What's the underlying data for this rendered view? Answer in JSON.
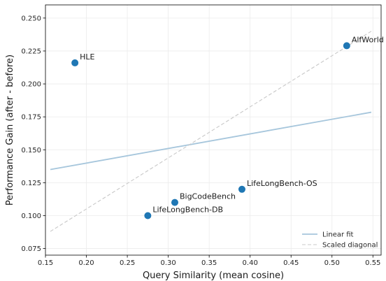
{
  "chart_data": {
    "type": "scatter",
    "title": "",
    "xlabel": "Query Similarity (mean cosine)",
    "ylabel": "Performance Gain (after - before)",
    "xlim": [
      0.15,
      0.56
    ],
    "ylim": [
      0.07,
      0.26
    ],
    "xticks": [
      0.15,
      0.2,
      0.25,
      0.3,
      0.35,
      0.4,
      0.45,
      0.5,
      0.55
    ],
    "xtick_labels": [
      "0.15",
      "0.20",
      "0.25",
      "0.30",
      "0.35",
      "0.40",
      "0.45",
      "0.50",
      "0.55"
    ],
    "yticks": [
      0.075,
      0.1,
      0.125,
      0.15,
      0.175,
      0.2,
      0.225,
      0.25
    ],
    "ytick_labels": [
      "0.075",
      "0.100",
      "0.125",
      "0.150",
      "0.175",
      "0.200",
      "0.225",
      "0.250"
    ],
    "grid": true,
    "points": [
      {
        "label": "HLE",
        "x": 0.186,
        "y": 0.216
      },
      {
        "label": "AlfWorld",
        "x": 0.518,
        "y": 0.229
      },
      {
        "label": "LifeLongBench-OS",
        "x": 0.39,
        "y": 0.12
      },
      {
        "label": "BigCodeBench",
        "x": 0.308,
        "y": 0.11
      },
      {
        "label": "LifeLongBench-DB",
        "x": 0.275,
        "y": 0.1
      }
    ],
    "lines": [
      {
        "name": "Linear fit",
        "x": [
          0.156,
          0.548
        ],
        "y": [
          0.135,
          0.1785
        ],
        "color": "#a6c6dc",
        "style": "solid"
      },
      {
        "name": "Scaled diagonal",
        "x": [
          0.156,
          0.548
        ],
        "y": [
          0.088,
          0.24
        ],
        "color": "#c8c8c8",
        "style": "dashed"
      }
    ],
    "legend_position": "bottom-right",
    "point_color": "#1f77b4"
  }
}
